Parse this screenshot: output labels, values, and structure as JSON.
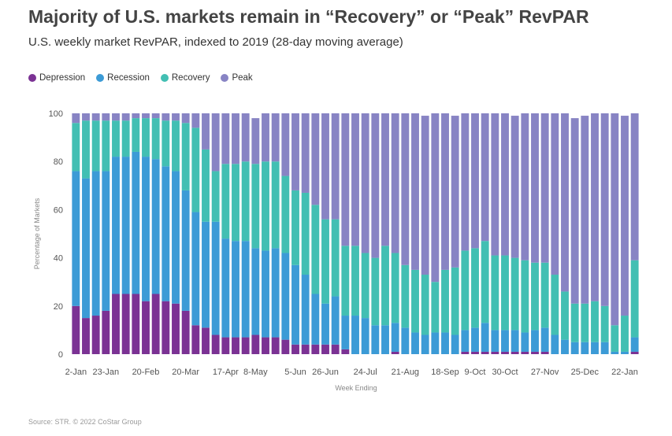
{
  "chart_data": {
    "type": "bar",
    "stacked": true,
    "title": "Majority of U.S. markets remain in “Recovery” or “Peak” RevPAR",
    "subtitle": "U.S. weekly market RevPAR, indexed to 2019 (28-day moving average)",
    "xlabel": "Week Ending",
    "ylabel": "Percentage of Markets",
    "ylim": [
      0,
      100
    ],
    "yticks": [
      0,
      20,
      40,
      60,
      80,
      100
    ],
    "grid": false,
    "legend_position": "top-left",
    "x_tick_labels": [
      {
        "index": 0,
        "label": "2-Jan"
      },
      {
        "index": 3,
        "label": "23-Jan"
      },
      {
        "index": 7,
        "label": "20-Feb"
      },
      {
        "index": 11,
        "label": "20-Mar"
      },
      {
        "index": 15,
        "label": "17-Apr"
      },
      {
        "index": 18,
        "label": "8-May"
      },
      {
        "index": 22,
        "label": "5-Jun"
      },
      {
        "index": 25,
        "label": "26-Jun"
      },
      {
        "index": 29,
        "label": "24-Jul"
      },
      {
        "index": 33,
        "label": "21-Aug"
      },
      {
        "index": 37,
        "label": "18-Sep"
      },
      {
        "index": 40,
        "label": "9-Oct"
      },
      {
        "index": 43,
        "label": "30-Oct"
      },
      {
        "index": 47,
        "label": "27-Nov"
      },
      {
        "index": 51,
        "label": "25-Dec"
      },
      {
        "index": 55,
        "label": "22-Jan"
      }
    ],
    "series": [
      {
        "name": "Depression",
        "color": "#7b3294",
        "values": [
          20,
          15,
          16,
          18,
          25,
          25,
          25,
          22,
          25,
          22,
          21,
          18,
          12,
          11,
          8,
          7,
          7,
          7,
          8,
          7,
          7,
          6,
          4,
          4,
          4,
          4,
          4,
          2,
          0,
          0,
          0,
          0,
          1,
          0,
          0,
          0,
          0,
          0,
          0,
          1,
          1,
          1,
          1,
          1,
          1,
          1,
          1,
          1,
          0,
          0,
          0,
          0,
          0,
          0,
          0,
          0,
          1
        ]
      },
      {
        "name": "Recession",
        "color": "#3c9bd6",
        "values": [
          56,
          58,
          60,
          58,
          57,
          57,
          59,
          60,
          56,
          56,
          55,
          50,
          47,
          44,
          47,
          41,
          40,
          40,
          36,
          36,
          37,
          36,
          33,
          29,
          21,
          17,
          20,
          14,
          16,
          15,
          12,
          12,
          12,
          11,
          9,
          8,
          9,
          9,
          8,
          9,
          10,
          12,
          9,
          9,
          9,
          8,
          9,
          10,
          8,
          6,
          5,
          5,
          5,
          5,
          1,
          1,
          6,
          11
        ]
      },
      {
        "name": "Recovery",
        "color": "#42bfb3",
        "values": [
          20,
          24,
          21,
          21,
          15,
          15,
          14,
          16,
          17,
          19,
          21,
          28,
          35,
          30,
          21,
          31,
          32,
          33,
          35,
          37,
          36,
          32,
          31,
          34,
          37,
          35,
          32,
          29,
          29,
          27,
          28,
          33,
          29,
          26,
          26,
          25,
          21,
          26,
          28,
          33,
          33,
          34,
          31,
          31,
          30,
          30,
          28,
          27,
          25,
          20,
          16,
          16,
          17,
          15,
          11,
          15,
          32,
          33
        ]
      },
      {
        "name": "Peak",
        "color": "#8884c4",
        "values": [
          4,
          3,
          3,
          3,
          3,
          3,
          2,
          2,
          2,
          3,
          3,
          4,
          6,
          15,
          24,
          21,
          21,
          20,
          19,
          20,
          20,
          26,
          32,
          33,
          38,
          44,
          44,
          55,
          55,
          58,
          60,
          55,
          58,
          63,
          65,
          66,
          70,
          65,
          63,
          57,
          56,
          53,
          59,
          59,
          59,
          61,
          62,
          62,
          67,
          74,
          77,
          78,
          78,
          80,
          88,
          83,
          61,
          55
        ]
      }
    ]
  },
  "source": "Source: STR. © 2022 CoStar Group"
}
